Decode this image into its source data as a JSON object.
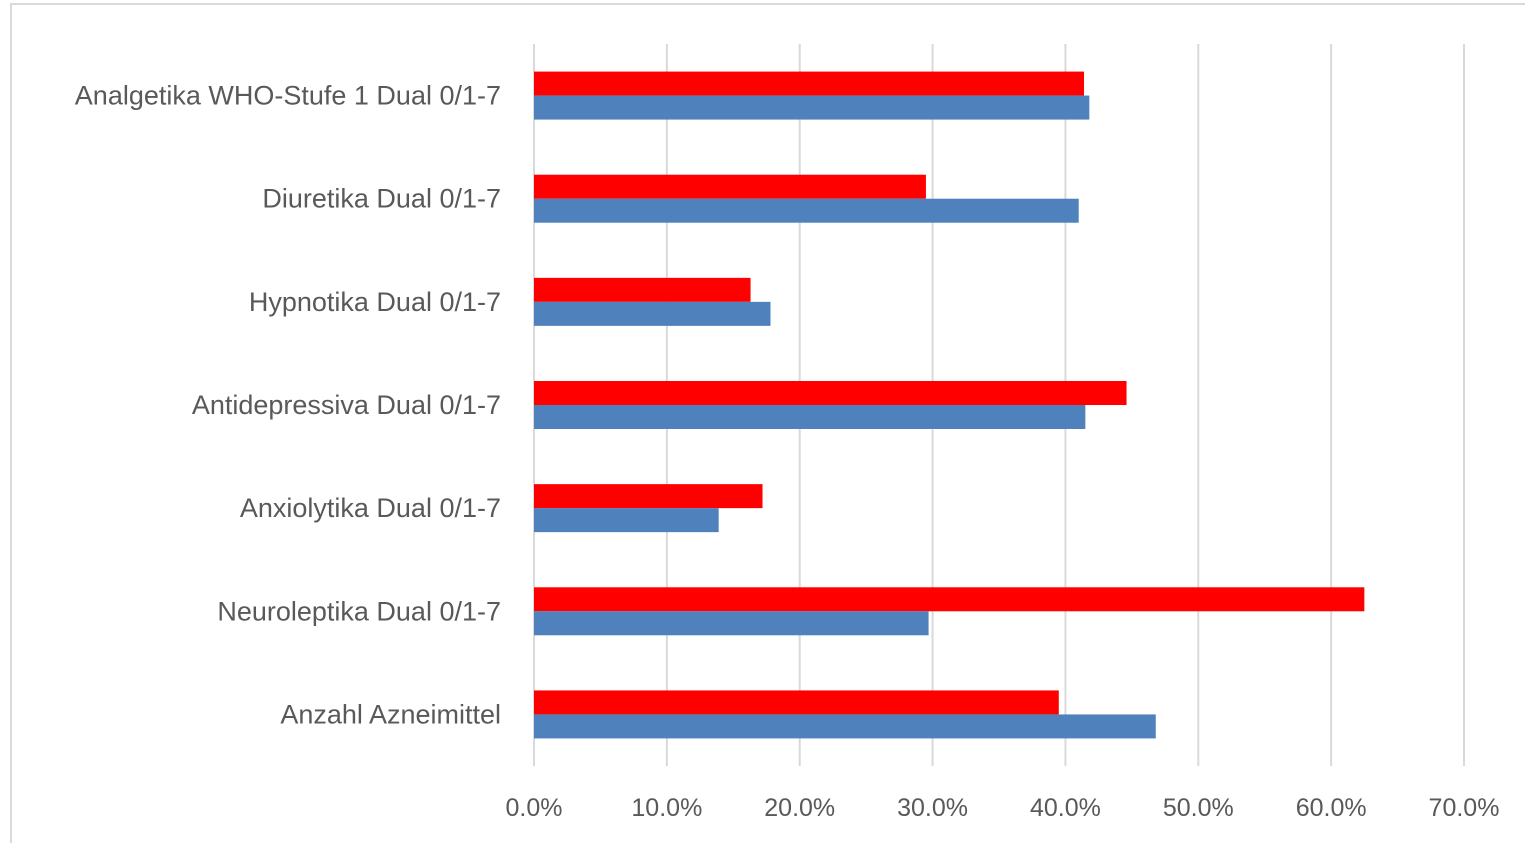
{
  "chart_data": {
    "type": "bar",
    "orientation": "horizontal",
    "categories": [
      "Analgetika WHO-Stufe 1 Dual 0/1-7",
      "Diuretika Dual 0/1-7",
      "Hypnotika Dual 0/1-7",
      "Antidepressiva Dual 0/1-7",
      "Anxiolytika Dual 0/1-7",
      "Neuroleptika Dual 0/1-7",
      "Anzahl Azneimittel"
    ],
    "series": [
      {
        "color": "#ff0000",
        "values": [
          41.4,
          29.5,
          16.3,
          44.6,
          17.2,
          62.5,
          39.5
        ]
      },
      {
        "color": "#4f81bd",
        "values": [
          41.8,
          41.0,
          17.8,
          41.5,
          13.9,
          29.7,
          46.8
        ]
      }
    ],
    "xlim": [
      0,
      70
    ],
    "xticks": [
      0,
      10,
      20,
      30,
      40,
      50,
      60,
      70
    ],
    "xtick_labels": [
      "0.0%",
      "10.0%",
      "20.0%",
      "30.0%",
      "40.0%",
      "50.0%",
      "60.0%",
      "70.0%"
    ],
    "grid": "vertical",
    "legend": "none"
  }
}
